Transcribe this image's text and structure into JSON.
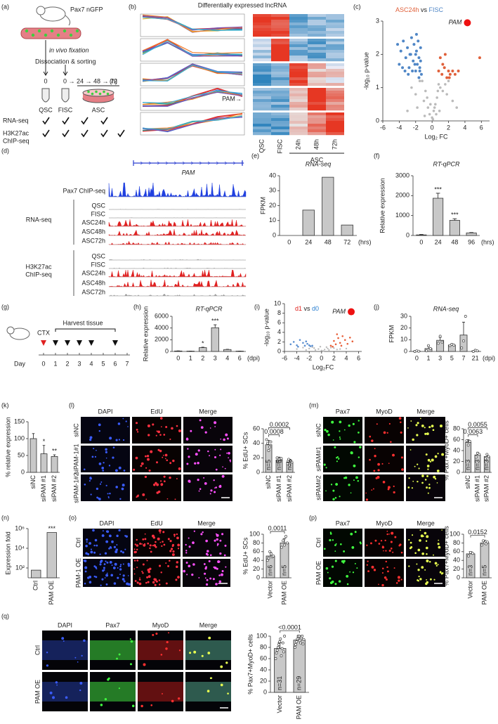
{
  "chart_data": [
    {
      "type": "scatter",
      "label": "(c)",
      "title_parts": [
        {
          "text": "ASC24h",
          "color": "#e0603a"
        },
        {
          "text": " vs ",
          "color": "#222222"
        },
        {
          "text": "FISC",
          "color": "#4f86c6"
        }
      ],
      "x_label": "Log₂ FC",
      "y_label": "-log₁₀ p-value",
      "xlim": [
        -6,
        7
      ],
      "xticks": [
        -6,
        -4,
        -2,
        0,
        2,
        4,
        6
      ],
      "ylim": [
        0,
        3
      ],
      "yticks": [
        0,
        1,
        2,
        3
      ],
      "series": [
        {
          "color": "#bbbbbb",
          "size": 1.8,
          "x": [
            -2.5,
            -2,
            -1.5,
            -1,
            -0.8,
            -0.5,
            -0.3,
            0,
            0.2,
            0.4,
            0.6,
            0.8,
            1,
            1.3,
            1.6,
            2,
            2.5,
            -1.2,
            -0.6,
            0.1,
            0.5,
            -3,
            -0.2,
            0.3,
            0.9,
            1.8,
            3,
            -1.8,
            0.7,
            -0.9
          ],
          "y": [
            1.0,
            0.8,
            1.2,
            0.6,
            0.9,
            0.4,
            0.2,
            0.1,
            0.3,
            0.5,
            0.7,
            1.1,
            1.0,
            0.9,
            1.1,
            1.2,
            0.6,
            1.2,
            0.7,
            0.05,
            0.2,
            0.3,
            0.5,
            0.4,
            0.3,
            0.8,
            0.4,
            0.4,
            0.9,
            0.15
          ]
        },
        {
          "color": "#4f86c6",
          "size": 2,
          "x": [
            -4.2,
            -3.8,
            -3.5,
            -3.2,
            -3,
            -2.8,
            -2.6,
            -2.5,
            -2.3,
            -2.2,
            -2,
            -1.9,
            -1.8,
            -1.7,
            -1.6,
            -1.5,
            -1.4,
            -1.3,
            -3.6,
            -2.9,
            -2.4,
            -2.1,
            -1.9,
            -1.6,
            -1.4,
            -3.3,
            -2.7,
            -2,
            -1.5,
            -4
          ],
          "y": [
            2.3,
            2.1,
            2.4,
            1.9,
            2.2,
            1.6,
            2.0,
            2.5,
            1.8,
            2.3,
            1.5,
            2.1,
            1.7,
            2.4,
            1.9,
            1.6,
            2.2,
            1.4,
            1.6,
            1.4,
            1.5,
            1.7,
            2.6,
            1.3,
            1.8,
            1.5,
            2.0,
            2.0,
            1.5,
            1.7
          ]
        },
        {
          "color": "#e0603a",
          "size": 2,
          "x": [
            0.8,
            1,
            1.2,
            1.5,
            1.8,
            2,
            2.2,
            2.5,
            2.8,
            1.3,
            1.6,
            2.1,
            5.8,
            3.2
          ],
          "y": [
            1.5,
            1.9,
            1.4,
            1.6,
            1.3,
            1.5,
            1.4,
            1.5,
            1.4,
            1.7,
            2.0,
            1.3,
            1.9,
            1.5
          ]
        },
        {
          "color": "#ee1111",
          "size": 5,
          "label": "PAM",
          "x": [
            4.3
          ],
          "y": [
            2.95
          ]
        }
      ]
    },
    {
      "type": "bar",
      "label": "(e)",
      "title": "RNA-seq",
      "y_label": "FPKM",
      "x_unit": "(hrs)",
      "color": "#c8c8c8",
      "categories": [
        "0",
        "24",
        "48",
        "72"
      ],
      "values": [
        0,
        17,
        39,
        7
      ],
      "ylim": [
        0,
        40
      ],
      "yticks": [
        0,
        10,
        20,
        30,
        40
      ]
    },
    {
      "type": "bar",
      "label": "(f)",
      "title": "RT-qPCR",
      "y_label": "Relative expression",
      "x_unit": "(hrs)",
      "color": "#c8c8c8",
      "categories": [
        "0",
        "24",
        "48",
        "96"
      ],
      "values": [
        30,
        1870,
        760,
        130
      ],
      "errors": [
        20,
        250,
        80,
        20
      ],
      "ylim": [
        0,
        3000
      ],
      "yticks": [
        0,
        1000,
        2000,
        3000
      ],
      "significance": [
        {
          "at": 1,
          "text": "***"
        },
        {
          "at": 2,
          "text": "***"
        }
      ]
    },
    {
      "type": "bar",
      "label": "(h)",
      "title": "RT-qPCR",
      "y_label": "Relative expression",
      "x_unit": "(dpi)",
      "color": "#c8c8c8",
      "categories": [
        "0",
        "1",
        "2",
        "3",
        "4",
        "6"
      ],
      "values": [
        80,
        60,
        650,
        4050,
        330,
        60
      ],
      "errors": [
        20,
        15,
        80,
        500,
        40,
        10
      ],
      "ylim": [
        0,
        6000
      ],
      "yticks": [
        0,
        2000,
        4000,
        6000
      ],
      "significance": [
        {
          "at": 2,
          "text": "*"
        },
        {
          "at": 3,
          "text": "***"
        }
      ]
    },
    {
      "type": "scatter",
      "label": "(i)",
      "title_parts": [
        {
          "text": "d1",
          "color": "#e0201a"
        },
        {
          "text": " vs ",
          "color": "#222222"
        },
        {
          "text": "d0",
          "color": "#2a7fd0"
        }
      ],
      "x_label": "Log₂FC",
      "y_label": "-log₁₀ p-value",
      "xlim": [
        -6,
        6.5
      ],
      "xticks": [
        -6,
        -4,
        -2,
        0,
        2,
        4,
        6
      ],
      "ylim": [
        0,
        10
      ],
      "yticks": [
        0,
        2,
        4,
        6,
        8,
        10
      ],
      "series": [
        {
          "color": "#bbbbbb",
          "size": 1.2,
          "x": [
            -4,
            -3,
            -2,
            -1.5,
            -1,
            -0.5,
            0,
            0.5,
            1,
            1.5,
            2,
            3,
            -2.5,
            -0.2,
            0.3,
            0.8,
            -1.2,
            1.2,
            2.5,
            4
          ],
          "y": [
            0.5,
            0.8,
            0.6,
            0.9,
            0.3,
            0.5,
            0.2,
            0.4,
            0.6,
            0.8,
            0.7,
            0.5,
            0.3,
            1,
            0.1,
            0.9,
            0.7,
            0.3,
            0.4,
            0.6
          ]
        },
        {
          "color": "#5b8fd0",
          "size": 1.3,
          "x": [
            -5,
            -4.5,
            -4,
            -3.5,
            -3,
            -2.7,
            -2.3,
            -2,
            -1.8,
            -1.5,
            -3.8,
            -2.5
          ],
          "y": [
            1.5,
            2,
            1.3,
            2.4,
            1.8,
            1.2,
            1.6,
            1.3,
            1.1,
            1.2,
            1.0,
            2.1
          ]
        },
        {
          "color": "#e8603a",
          "size": 1.3,
          "x": [
            1.5,
            2,
            2.3,
            2.7,
            3,
            3.4,
            3.8,
            4.2,
            4.6,
            5,
            2.5,
            3.2,
            1.8
          ],
          "y": [
            1.2,
            2.2,
            1.5,
            2.8,
            1.8,
            3.2,
            2.4,
            1.6,
            2.9,
            2.1,
            3.6,
            1.2,
            1.0
          ]
        },
        {
          "color": "#ee1111",
          "size": 5,
          "label": "PAM",
          "x": [
            4.8
          ],
          "y": [
            8.3
          ]
        }
      ]
    },
    {
      "type": "bar",
      "label": "(j)",
      "title": "RNA-seq",
      "y_label": "FPKM",
      "x_unit": "(dpi)",
      "color": "#c8c8c8",
      "categories": [
        "0",
        "1",
        "3",
        "5",
        "7",
        "21"
      ],
      "values": [
        0.3,
        2.5,
        9.5,
        5.5,
        14,
        0.5
      ],
      "errors": [
        0.3,
        2,
        2.5,
        1,
        11,
        0.5
      ],
      "points": [
        [
          0,
          0.5,
          0.2
        ],
        [
          0.5,
          5,
          2.5
        ],
        [
          7,
          13,
          8
        ],
        [
          5,
          6,
          5.5
        ],
        [
          3,
          9,
          30
        ],
        [
          0,
          1,
          0.5
        ]
      ],
      "ylim": [
        0,
        30
      ],
      "yticks": [
        0,
        10,
        20,
        30
      ]
    },
    {
      "type": "bar",
      "label": "(k)",
      "y_label": "% relative expression",
      "color": "#c8c8c8",
      "rotate_labels": true,
      "categories": [
        "siNC",
        "siPAM #1",
        "siPAM #2"
      ],
      "values": [
        100,
        55,
        47
      ],
      "errors": [
        15,
        25,
        5
      ],
      "ylim": [
        0,
        150
      ],
      "yticks": [
        0,
        50,
        100,
        150
      ],
      "significance": [
        {
          "at": 1,
          "text": "*"
        },
        {
          "at": 2,
          "text": "**"
        }
      ]
    },
    {
      "type": "bar",
      "y_label": "% EdU+ SCs",
      "color": "#c8c8c8",
      "rotate_labels": true,
      "categories": [
        "siNC",
        "siPAM #1",
        "siPAM #2"
      ],
      "values": [
        38,
        17,
        14
      ],
      "errors": [
        6,
        4,
        4
      ],
      "points": [
        [
          45,
          40,
          30,
          35,
          42
        ],
        [
          20,
          14,
          18,
          15,
          19
        ],
        [
          12,
          18,
          10,
          16,
          14
        ]
      ],
      "n_labels": [
        "n=5",
        "n=5",
        "n=5"
      ],
      "ylim": [
        0,
        60
      ],
      "yticks": [
        0,
        20,
        40,
        60
      ],
      "brackets": [
        {
          "from": 0,
          "to": 1,
          "text": "0.0008"
        },
        {
          "from": 0,
          "to": 2,
          "text": "0.0002"
        }
      ]
    },
    {
      "type": "bar",
      "y_label": "% Pax7+MyoD+ cells",
      "color": "#c8c8c8",
      "rotate_labels": true,
      "categories": [
        "siNC",
        "siPAM #1",
        "siPAM #2"
      ],
      "values": [
        55,
        32,
        29
      ],
      "errors": [
        5,
        5,
        5
      ],
      "points": [
        [
          58,
          50,
          57
        ],
        [
          28,
          35,
          33
        ],
        [
          25,
          33,
          29
        ]
      ],
      "n_labels": [
        "n=3",
        "n=3",
        "n=3"
      ],
      "ylim": [
        0,
        80
      ],
      "yticks": [
        0,
        20,
        40,
        60,
        80
      ],
      "brackets": [
        {
          "from": 0,
          "to": 1,
          "text": "0.0063"
        },
        {
          "from": 0,
          "to": 2,
          "text": "0.0055"
        }
      ]
    },
    {
      "type": "bar",
      "label": "(n)",
      "y_label": "Expression fold",
      "color": "#c8c8c8",
      "rotate_labels": true,
      "log_scale": true,
      "categories": [
        "Ctrl",
        "PAM OE"
      ],
      "values": [
        60,
        400000
      ],
      "ylim": [
        10,
        1000000
      ],
      "yticks": [
        {
          "value": 100,
          "label": "10²"
        },
        {
          "value": 10000,
          "label": "10⁴"
        },
        {
          "value": 1000000,
          "label": "10⁶"
        }
      ],
      "significance": [
        {
          "at": 1,
          "text": "***"
        }
      ]
    },
    {
      "type": "bar",
      "y_label": "% EdU+ SCs",
      "color": "#c8c8c8",
      "rotate_labels": true,
      "categories": [
        "Vector",
        "PAM OE"
      ],
      "values": [
        50,
        80
      ],
      "errors": [
        8,
        10
      ],
      "points": [
        [
          40,
          45,
          60,
          55,
          48,
          50
        ],
        [
          70,
          85,
          75,
          95,
          80
        ]
      ],
      "n_labels": [
        "n=6",
        "n=5"
      ],
      "ylim": [
        0,
        100
      ],
      "yticks": [
        0,
        20,
        40,
        60,
        80,
        100
      ],
      "brackets": [
        {
          "from": 0,
          "to": 1,
          "text": "0.0011"
        }
      ]
    },
    {
      "type": "bar",
      "y_label": "% Pax7+MyoD+ cells",
      "color": "#c8c8c8",
      "rotate_labels": true,
      "categories": [
        "Vector",
        "PAM OE"
      ],
      "values": [
        55,
        80
      ],
      "errors": [
        5,
        6
      ],
      "points": [
        [
          50,
          58,
          56
        ],
        [
          75,
          85,
          80,
          78,
          82
        ]
      ],
      "n_labels": [
        "n=3",
        "n=5"
      ],
      "ylim": [
        0,
        100
      ],
      "yticks": [
        0,
        20,
        40,
        60,
        80,
        100
      ],
      "brackets": [
        {
          "from": 0,
          "to": 1,
          "text": "0.0152"
        }
      ]
    },
    {
      "type": "bar",
      "y_label": "% Pax7+MyoD+ cells",
      "color": "#c8c8c8",
      "rotate_labels": true,
      "categories": [
        "Vector",
        "PAM OE"
      ],
      "values": [
        78,
        93
      ],
      "errors": [
        10,
        8
      ],
      "points": [
        [
          60,
          70,
          75,
          80,
          85,
          90,
          95,
          65,
          78,
          88,
          72,
          100
        ],
        [
          80,
          85,
          90,
          95,
          100,
          100,
          92,
          88,
          97,
          100,
          86,
          94
        ]
      ],
      "n_labels": [
        "n=31",
        "n=29"
      ],
      "ylim": [
        0,
        100
      ],
      "yticks": [
        0,
        20,
        40,
        60,
        80,
        100
      ],
      "brackets": [
        {
          "from": 0,
          "to": 1,
          "text": "<0.0001"
        }
      ]
    }
  ],
  "panels": {
    "a": {
      "label": "(a)",
      "reporter": "Pax7 nGFP",
      "steps": [
        "in vivo fixation",
        "Dissociation & sorting"
      ],
      "timeline": [
        "0",
        "0 → 24 → 48 → 72",
        "(h)"
      ],
      "cells": [
        "QSC",
        "FISC",
        "ASC"
      ],
      "assays": [
        {
          "lines": [
            "RNA-seq"
          ],
          "checks": 4
        },
        {
          "lines": [
            "H3K27ac",
            "ChIP-seq"
          ],
          "checks": 5
        }
      ]
    },
    "b": {
      "label": "(b)",
      "title": "Differentially expressed lncRNA",
      "columns": [
        "QSC",
        "FISC",
        "24h",
        "48h",
        "72h"
      ],
      "group": "ASC",
      "marker": "PAM→"
    },
    "d": {
      "label": "(d)",
      "gene": "PAM",
      "chip": "Pax7 ChIP-seq",
      "groups": [
        {
          "lines": [
            "RNA-seq"
          ],
          "samples": [
            "QSC",
            "FISC",
            "ASC24h",
            "ASC48h",
            "ASC72h"
          ]
        },
        {
          "lines": [
            "H3K27ac",
            "ChIP-seq"
          ],
          "samples": [
            "QSC",
            "FISC",
            "ASC24h",
            "ASC48h",
            "ASC72h"
          ]
        }
      ]
    },
    "g": {
      "label": "(g)",
      "injury": "CTX",
      "harvest": "Harvest tissue",
      "day_label": "Day",
      "days": [
        "0",
        "1",
        "2",
        "3",
        "4",
        "5",
        "6",
        "7"
      ],
      "harvest_days": [
        1,
        2,
        3,
        4,
        6
      ]
    },
    "l": {
      "label": "(l)",
      "channels": [
        "DAPI",
        "EdU",
        "Merge"
      ],
      "rows": [
        "siNC",
        "siPAM-1#1",
        "siPAM-1#2"
      ]
    },
    "m": {
      "label": "(m)",
      "channels": [
        "Pax7",
        "MyoD",
        "Merge"
      ],
      "rows": [
        "siNC",
        "siPAM#1",
        "siPAM#2"
      ]
    },
    "o": {
      "label": "(o)",
      "channels": [
        "DAPI",
        "EdU",
        "Merge"
      ],
      "rows": [
        "Ctrl",
        "PAM-1 OE"
      ]
    },
    "p": {
      "label": "(p)",
      "channels": [
        "Pax7",
        "MyoD",
        "Merge"
      ],
      "rows": [
        "Ctrl",
        "PAM OE"
      ]
    },
    "q": {
      "label": "(q)",
      "channels": [
        "DAPI",
        "Pax7",
        "MyoD",
        "Merge"
      ],
      "rows": [
        "Ctrl",
        "PAM OE"
      ]
    }
  }
}
